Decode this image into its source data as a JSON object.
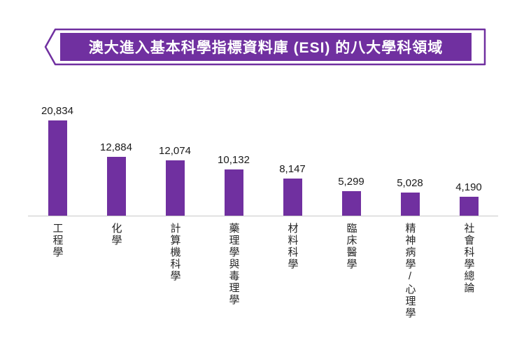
{
  "banner": {
    "fill_color": "#7030A0",
    "outline_color": "#7030A0"
  },
  "chart_data": {
    "type": "bar",
    "title": "澳大進入基本科學指標資料庫 (ESI) 的八大學科領域",
    "categories": [
      "工程學",
      "化學",
      "計算機科學",
      "藥理學與毒理學",
      "材料科學",
      "臨床醫學",
      "精神病學/心理學",
      "社會科學總論"
    ],
    "values": [
      20834,
      12884,
      12074,
      10132,
      8147,
      5299,
      5028,
      4190
    ],
    "value_labels": [
      "20,834",
      "12,884",
      "12,074",
      "10,132",
      "8,147",
      "5,299",
      "5,028",
      "4,190"
    ],
    "bar_color": "#7030A0",
    "xlabel": "",
    "ylabel": "",
    "ylim": [
      0,
      20834
    ],
    "grid": false,
    "legend": false,
    "value_labels_position": "above-bars",
    "category_labels_orientation": "vertical"
  }
}
